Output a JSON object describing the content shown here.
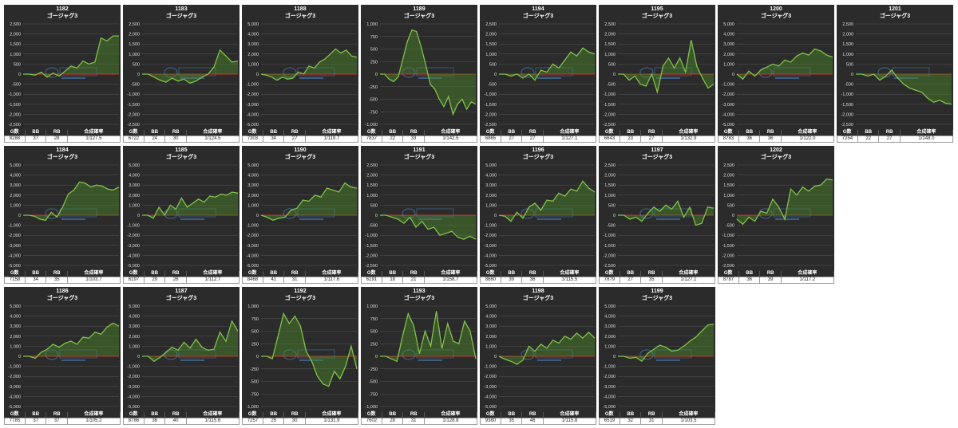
{
  "colors": {
    "background": "#2b2b2b",
    "line": "#7fc24a",
    "fill": "#4f8a2a",
    "zero": "#c0392b",
    "grid": "#555555"
  },
  "stat_headers": [
    "G数",
    "BB",
    "RB",
    "合成確率"
  ],
  "chart_data": [
    {
      "type": "area",
      "title": "1182",
      "subtitle": "ゴージャグ3",
      "ylim": [
        -2500,
        2500
      ],
      "yticks": [
        2500,
        2000,
        1500,
        1000,
        500,
        0,
        -500,
        -1000,
        -1500,
        -2000,
        -2500
      ],
      "values": [
        0,
        0,
        -50,
        100,
        -150,
        50,
        -100,
        150,
        400,
        300,
        650,
        500,
        600,
        1800,
        1650,
        1900,
        1900
      ],
      "stats": [
        "8288",
        "37",
        "28",
        "1/127.5"
      ]
    },
    {
      "type": "area",
      "title": "1183",
      "subtitle": "ゴージャグ3",
      "ylim": [
        -2500,
        2500
      ],
      "yticks": [
        2500,
        2000,
        1500,
        1000,
        500,
        0,
        -500,
        -1000,
        -1500,
        -2000,
        -2500
      ],
      "values": [
        0,
        0,
        -150,
        -300,
        -400,
        -200,
        -350,
        -250,
        -450,
        -350,
        -150,
        0,
        350,
        1200,
        900,
        600,
        650
      ],
      "stats": [
        "6722",
        "24",
        "30",
        "1/124.5"
      ]
    },
    {
      "type": "area",
      "title": "1188",
      "subtitle": "ゴージャグ3",
      "ylim": [
        -5000,
        5000
      ],
      "yticks": [
        5000,
        4000,
        3000,
        2000,
        1000,
        0,
        -1000,
        -2000,
        -3000,
        -4000,
        -5000
      ],
      "values": [
        0,
        -100,
        -300,
        -600,
        -300,
        -500,
        -400,
        200,
        0,
        800,
        600,
        1200,
        1500,
        2000,
        2500,
        2100,
        2400,
        1800,
        1700
      ],
      "stats": [
        "7303",
        "34",
        "27",
        "1/119.7"
      ]
    },
    {
      "type": "area",
      "title": "1189",
      "subtitle": "ゴージャグ3",
      "ylim": [
        -1000,
        1000
      ],
      "yticks": [
        1000,
        750,
        500,
        250,
        0,
        -250,
        -500,
        -750,
        -1000
      ],
      "values": [
        0,
        0,
        -100,
        -150,
        -50,
        300,
        650,
        880,
        850,
        550,
        200,
        -200,
        -300,
        -500,
        -650,
        -450,
        -800,
        -600,
        -500,
        -700,
        -550,
        -600
      ],
      "stats": [
        "7837",
        "22",
        "33",
        "1/142.5"
      ]
    },
    {
      "type": "area",
      "title": "1194",
      "subtitle": "ゴージャグ3",
      "ylim": [
        -2500,
        2500
      ],
      "yticks": [
        2500,
        2000,
        1500,
        1000,
        500,
        0,
        -500,
        -1000,
        -1500,
        -2000,
        -2500
      ],
      "values": [
        0,
        0,
        -100,
        0,
        -200,
        0,
        -300,
        200,
        100,
        500,
        300,
        700,
        1100,
        900,
        1300,
        1100,
        1000
      ],
      "stats": [
        "6865",
        "27",
        "27",
        "1/127.1"
      ]
    },
    {
      "type": "area",
      "title": "1195",
      "subtitle": "ゴージャグ3",
      "ylim": [
        -2500,
        2500
      ],
      "yticks": [
        2500,
        2000,
        1500,
        1000,
        500,
        0,
        -500,
        -1000,
        -1500,
        -2000,
        -2500
      ],
      "values": [
        0,
        0,
        -300,
        -100,
        -500,
        -600,
        0,
        -900,
        400,
        800,
        300,
        800,
        100,
        1700,
        400,
        -200,
        -700,
        -500
      ],
      "stats": [
        "6643",
        "23",
        "27",
        "1/132.9"
      ]
    },
    {
      "type": "area",
      "title": "1200",
      "subtitle": "ゴージャグ3",
      "ylim": [
        -5000,
        5000
      ],
      "yticks": [
        5000,
        4000,
        3000,
        2000,
        1000,
        0,
        -1000,
        -2000,
        -3000,
        -4000,
        -5000
      ],
      "values": [
        0,
        -500,
        300,
        -200,
        400,
        700,
        1000,
        800,
        1400,
        1200,
        1800,
        2100,
        1900,
        2500,
        2300,
        1900,
        1700
      ],
      "stats": [
        "8783",
        "36",
        "36",
        "1/122.0"
      ]
    },
    {
      "type": "area",
      "title": "1201",
      "subtitle": "ゴージャグ3",
      "ylim": [
        -2500,
        2500
      ],
      "yticks": [
        2500,
        2000,
        1500,
        1000,
        500,
        0,
        -500,
        -1000,
        -1500,
        -2000,
        -2500
      ],
      "values": [
        0,
        0,
        -100,
        0,
        -300,
        -100,
        200,
        -200,
        -500,
        -700,
        -800,
        -900,
        -1200,
        -1400,
        -1300,
        -1450,
        -1500
      ],
      "stats": [
        "7254",
        "22",
        "27",
        "1/148.0"
      ]
    },
    {
      "type": "area",
      "title": "1184",
      "subtitle": "ゴージャグ3",
      "ylim": [
        -5000,
        5000
      ],
      "yticks": [
        5000,
        4000,
        3000,
        2000,
        1000,
        0,
        -1000,
        -2000,
        -3000,
        -4000,
        -5000
      ],
      "values": [
        0,
        0,
        -100,
        -400,
        -500,
        300,
        -200,
        800,
        2100,
        2500,
        3300,
        3200,
        2800,
        3000,
        2900,
        2600,
        2500,
        2800
      ],
      "stats": [
        "7158",
        "34",
        "35",
        "1/103.7"
      ]
    },
    {
      "type": "area",
      "title": "1185",
      "subtitle": "ゴージャグ3",
      "ylim": [
        -5000,
        5000
      ],
      "yticks": [
        5000,
        4000,
        3000,
        2000,
        1000,
        0,
        -1000,
        -2000,
        -3000,
        -4000,
        -5000
      ],
      "values": [
        0,
        0,
        -300,
        800,
        0,
        1000,
        600,
        1700,
        800,
        1200,
        1600,
        1300,
        1900,
        1800,
        2100,
        2000,
        2300,
        2200
      ],
      "stats": [
        "6197",
        "29",
        "26",
        "1/112.7"
      ]
    },
    {
      "type": "area",
      "title": "1190",
      "subtitle": "ゴージャグ3",
      "ylim": [
        -5000,
        5000
      ],
      "yticks": [
        5000,
        4000,
        3000,
        2000,
        1000,
        0,
        -1000,
        -2000,
        -3000,
        -4000,
        -5000
      ],
      "values": [
        0,
        -200,
        -500,
        -300,
        -200,
        500,
        700,
        1500,
        1400,
        2000,
        1800,
        2700,
        2500,
        2300,
        3200,
        2800,
        2700
      ],
      "stats": [
        "8468",
        "41",
        "31",
        "1/117.6"
      ]
    },
    {
      "type": "area",
      "title": "1191",
      "subtitle": "ゴージャグ3",
      "ylim": [
        -2500,
        2500
      ],
      "yticks": [
        2500,
        2000,
        1500,
        1000,
        500,
        0,
        -500,
        -1000,
        -1500,
        -2000,
        -2500
      ],
      "values": [
        0,
        0,
        -100,
        -200,
        -400,
        -100,
        -600,
        -300,
        -700,
        -600,
        -1000,
        -900,
        -800,
        -1100,
        -1200,
        -1050,
        -1200
      ],
      "stats": [
        "6191",
        "18",
        "21",
        "1/158.7"
      ]
    },
    {
      "type": "area",
      "title": "1196",
      "subtitle": "ゴージャグ3",
      "ylim": [
        -5000,
        5000
      ],
      "yticks": [
        5000,
        4000,
        3000,
        2000,
        1000,
        0,
        -1000,
        -2000,
        -3000,
        -4000,
        -5000
      ],
      "values": [
        0,
        -100,
        -600,
        300,
        -300,
        800,
        1200,
        500,
        1500,
        1400,
        2200,
        1900,
        2600,
        2400,
        3400,
        2700,
        2300
      ],
      "stats": [
        "8660",
        "39",
        "36",
        "1/115.5"
      ]
    },
    {
      "type": "area",
      "title": "1197",
      "subtitle": "ゴージャグ3",
      "ylim": [
        -2500,
        2500
      ],
      "yticks": [
        2500,
        2000,
        1500,
        1000,
        500,
        0,
        -500,
        -1000,
        -1500,
        -2000,
        -2500
      ],
      "values": [
        0,
        0,
        -200,
        -100,
        -300,
        100,
        400,
        200,
        500,
        300,
        700,
        -100,
        400,
        -500,
        -400,
        400,
        350
      ],
      "stats": [
        "7879",
        "27",
        "35",
        "1/127.1"
      ]
    },
    {
      "type": "area",
      "title": "1202",
      "subtitle": "ゴージャグ3",
      "ylim": [
        -2500,
        2500
      ],
      "yticks": [
        2500,
        2000,
        1500,
        1000,
        500,
        0,
        -500,
        -1000,
        -1500,
        -2000,
        -2500
      ],
      "values": [
        -200,
        -450,
        -100,
        -300,
        200,
        100,
        800,
        400,
        -200,
        1300,
        1000,
        1400,
        1200,
        1450,
        1500,
        1800,
        1750
      ],
      "stats": [
        "8787",
        "36",
        "39",
        "1/117.2"
      ]
    },
    {
      "type": "area",
      "title": "1186",
      "subtitle": "ゴージャグ3",
      "ylim": [
        -5000,
        5000
      ],
      "yticks": [
        5000,
        4000,
        3000,
        2000,
        1000,
        0,
        -1000,
        -2000,
        -3000,
        -4000,
        -5000
      ],
      "values": [
        0,
        0,
        -200,
        400,
        700,
        1200,
        900,
        1300,
        1500,
        1200,
        1900,
        1800,
        2400,
        2200,
        2900,
        3300,
        3000
      ],
      "stats": [
        "7785",
        "37",
        "37",
        "1/105.2"
      ]
    },
    {
      "type": "area",
      "title": "1187",
      "subtitle": "ゴージャグ3",
      "ylim": [
        -5000,
        5000
      ],
      "yticks": [
        5000,
        4000,
        3000,
        2000,
        1000,
        0,
        -1000,
        -2000,
        -3000,
        -4000,
        -5000
      ],
      "values": [
        0,
        0,
        -500,
        -100,
        400,
        900,
        600,
        1400,
        800,
        1700,
        900,
        600,
        700,
        2400,
        1500,
        3500,
        2500
      ],
      "stats": [
        "8786",
        "36",
        "40",
        "1/115.6"
      ]
    },
    {
      "type": "area",
      "title": "1192",
      "subtitle": "ゴージャグ3",
      "ylim": [
        -1000,
        1000
      ],
      "yticks": [
        1000,
        750,
        500,
        250,
        0,
        -250,
        -500,
        -750,
        -1000
      ],
      "values": [
        0,
        0,
        -50,
        400,
        850,
        650,
        800,
        600,
        100,
        -100,
        -400,
        -550,
        -600,
        -300,
        -450,
        -200,
        200,
        -250
      ],
      "stats": [
        "7257",
        "25",
        "30",
        "1/131.9"
      ]
    },
    {
      "type": "area",
      "title": "1193",
      "subtitle": "ゴージャグ3",
      "ylim": [
        -1000,
        1000
      ],
      "yticks": [
        1000,
        750,
        500,
        250,
        0,
        -250,
        -500,
        -750,
        -1000
      ],
      "values": [
        0,
        0,
        -50,
        -100,
        400,
        850,
        600,
        50,
        500,
        200,
        900,
        150,
        650,
        300,
        250,
        700,
        500,
        -50
      ],
      "stats": [
        "7602",
        "28",
        "31",
        "1/128.8"
      ]
    },
    {
      "type": "area",
      "title": "1198",
      "subtitle": "ゴージャグ3",
      "ylim": [
        -5000,
        5000
      ],
      "yticks": [
        5000,
        4000,
        3000,
        2000,
        1000,
        0,
        -1000,
        -2000,
        -3000,
        -4000,
        -5000
      ],
      "values": [
        0,
        -300,
        -500,
        -800,
        -400,
        1000,
        500,
        1200,
        800,
        1600,
        1300,
        2000,
        1700,
        2300,
        1800,
        2400,
        1800
      ],
      "stats": [
        "9380",
        "35",
        "46",
        "1/115.8"
      ]
    },
    {
      "type": "area",
      "title": "1199",
      "subtitle": "ゴージャグ3",
      "ylim": [
        -5000,
        5000
      ],
      "yticks": [
        5000,
        4000,
        3000,
        2000,
        1000,
        0,
        -1000,
        -2000,
        -3000,
        -4000,
        -5000
      ],
      "values": [
        0,
        0,
        -200,
        -100,
        -500,
        300,
        700,
        1100,
        900,
        500,
        600,
        1000,
        1500,
        1900,
        2500,
        3100,
        3200
      ],
      "stats": [
        "6519",
        "32",
        "31",
        "1/103.5"
      ]
    }
  ]
}
